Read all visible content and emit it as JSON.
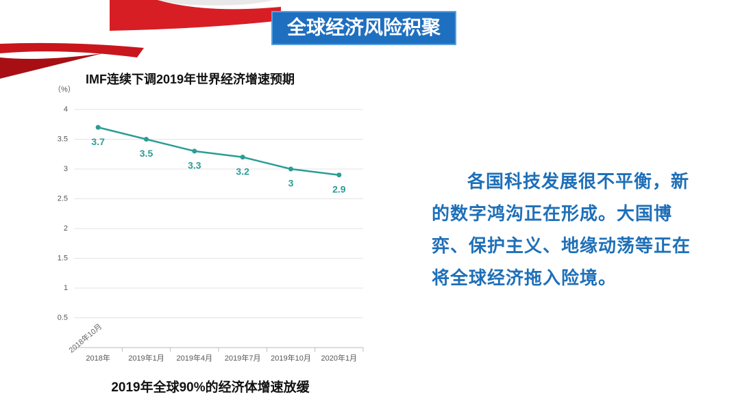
{
  "slide_title": "全球经济风险积聚",
  "chart_data": {
    "type": "line",
    "title": "IMF连续下调2019年世界经济增速预期",
    "y_unit": "（%）",
    "categories": [
      "2018年",
      "2019年1月",
      "2019年4月",
      "2019年7月",
      "2019年10月",
      "2020年1月"
    ],
    "values": [
      3.7,
      3.5,
      3.3,
      3.2,
      3,
      2.9
    ],
    "color": "#2a9d94",
    "ylim": [
      0,
      4
    ],
    "yticks": [
      0.5,
      1,
      1.5,
      2,
      2.5,
      3,
      3.5,
      4
    ],
    "grid": true,
    "annotation": "2018年10月"
  },
  "caption": "2019年全球90%的经济体增速放缓",
  "body_text": "各国科技发展很不平衡，新的数字鸿沟正在形成。大国博弈、保护主义、地缘动荡等正在将全球经济拖入险境。"
}
